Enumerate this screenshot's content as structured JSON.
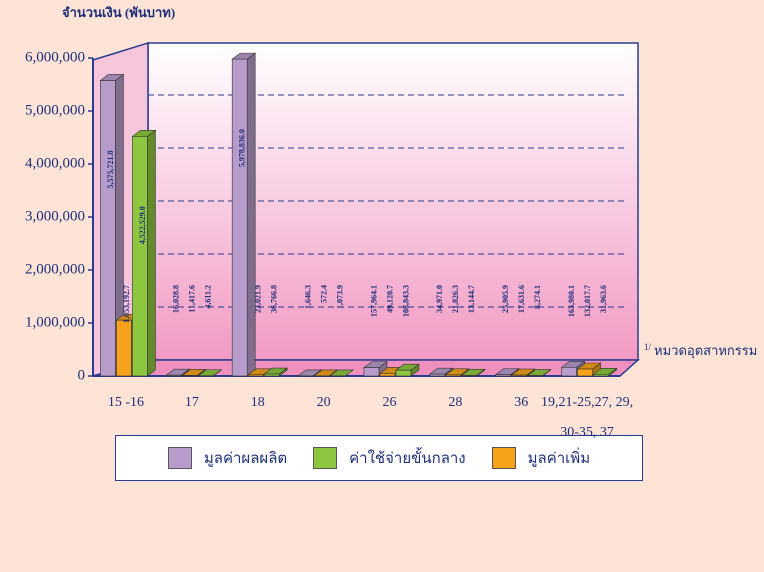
{
  "chart_data": {
    "type": "bar3d",
    "y_label": "จำนวนเงิน (พันบาท)",
    "x_label": "หมวดอุตสาหกรรม",
    "x_label_note": "1/",
    "categories": [
      "15 -16",
      "17",
      "18",
      "20",
      "26",
      "28",
      "36",
      "19,21-25,27, 29, 30-35, 37"
    ],
    "series": [
      {
        "name": "มูลค่าผลผลิต",
        "color": "#b79ccb",
        "values": [
          5575721.8,
          16028.8,
          5978836.0,
          1646.3,
          157964.1,
          34971.0,
          25905.9,
          163980.1
        ],
        "value_labels": [
          "5,575,721.8",
          "16,028.8",
          "5,978,836.0",
          "1,646.3",
          "157,964.1",
          "34,971.0",
          "25,905.9",
          "163,980.1"
        ]
      },
      {
        "name": "มูลค่าเพิ่ม",
        "color": "#f7a21b",
        "values": [
          1053192.7,
          11417.6,
          23021.9,
          572.4,
          49120.7,
          21826.3,
          17631.6,
          132017.7
        ],
        "value_labels": [
          "1,053,192.7",
          "11,417.6",
          "23,021.9",
          "572.4",
          "49,120.7",
          "21,826.3",
          "17,631.6",
          "132,017.7"
        ]
      },
      {
        "name": "ค่าใช้จ่ายขั้นกลาง",
        "color": "#8dc63f",
        "values": [
          4522529.0,
          4611.2,
          36766.8,
          1073.9,
          108843.3,
          13144.7,
          8274.1,
          31963.6
        ],
        "value_labels": [
          "4,522,529.0",
          "4,611.2",
          "36,766.8",
          "1,073.9",
          "108,843.3",
          "13,144.7",
          "8,274.1",
          "31,963.6"
        ]
      }
    ],
    "legend_order": [
      0,
      2,
      1
    ],
    "ylim": [
      0,
      6000000
    ],
    "yticks": [
      0,
      {
        "value": 1000000,
        "label": "1,000,000"
      },
      {
        "value": 2000000,
        "label": "2,000,000"
      },
      {
        "value": 3000000,
        "label": "3,000,000"
      },
      {
        "value": 4000000,
        "label": "4,000,000"
      },
      {
        "value": 5000000,
        "label": "5,000,000"
      },
      {
        "value": 6000000,
        "label": "6,000,000"
      }
    ],
    "grid": true
  }
}
